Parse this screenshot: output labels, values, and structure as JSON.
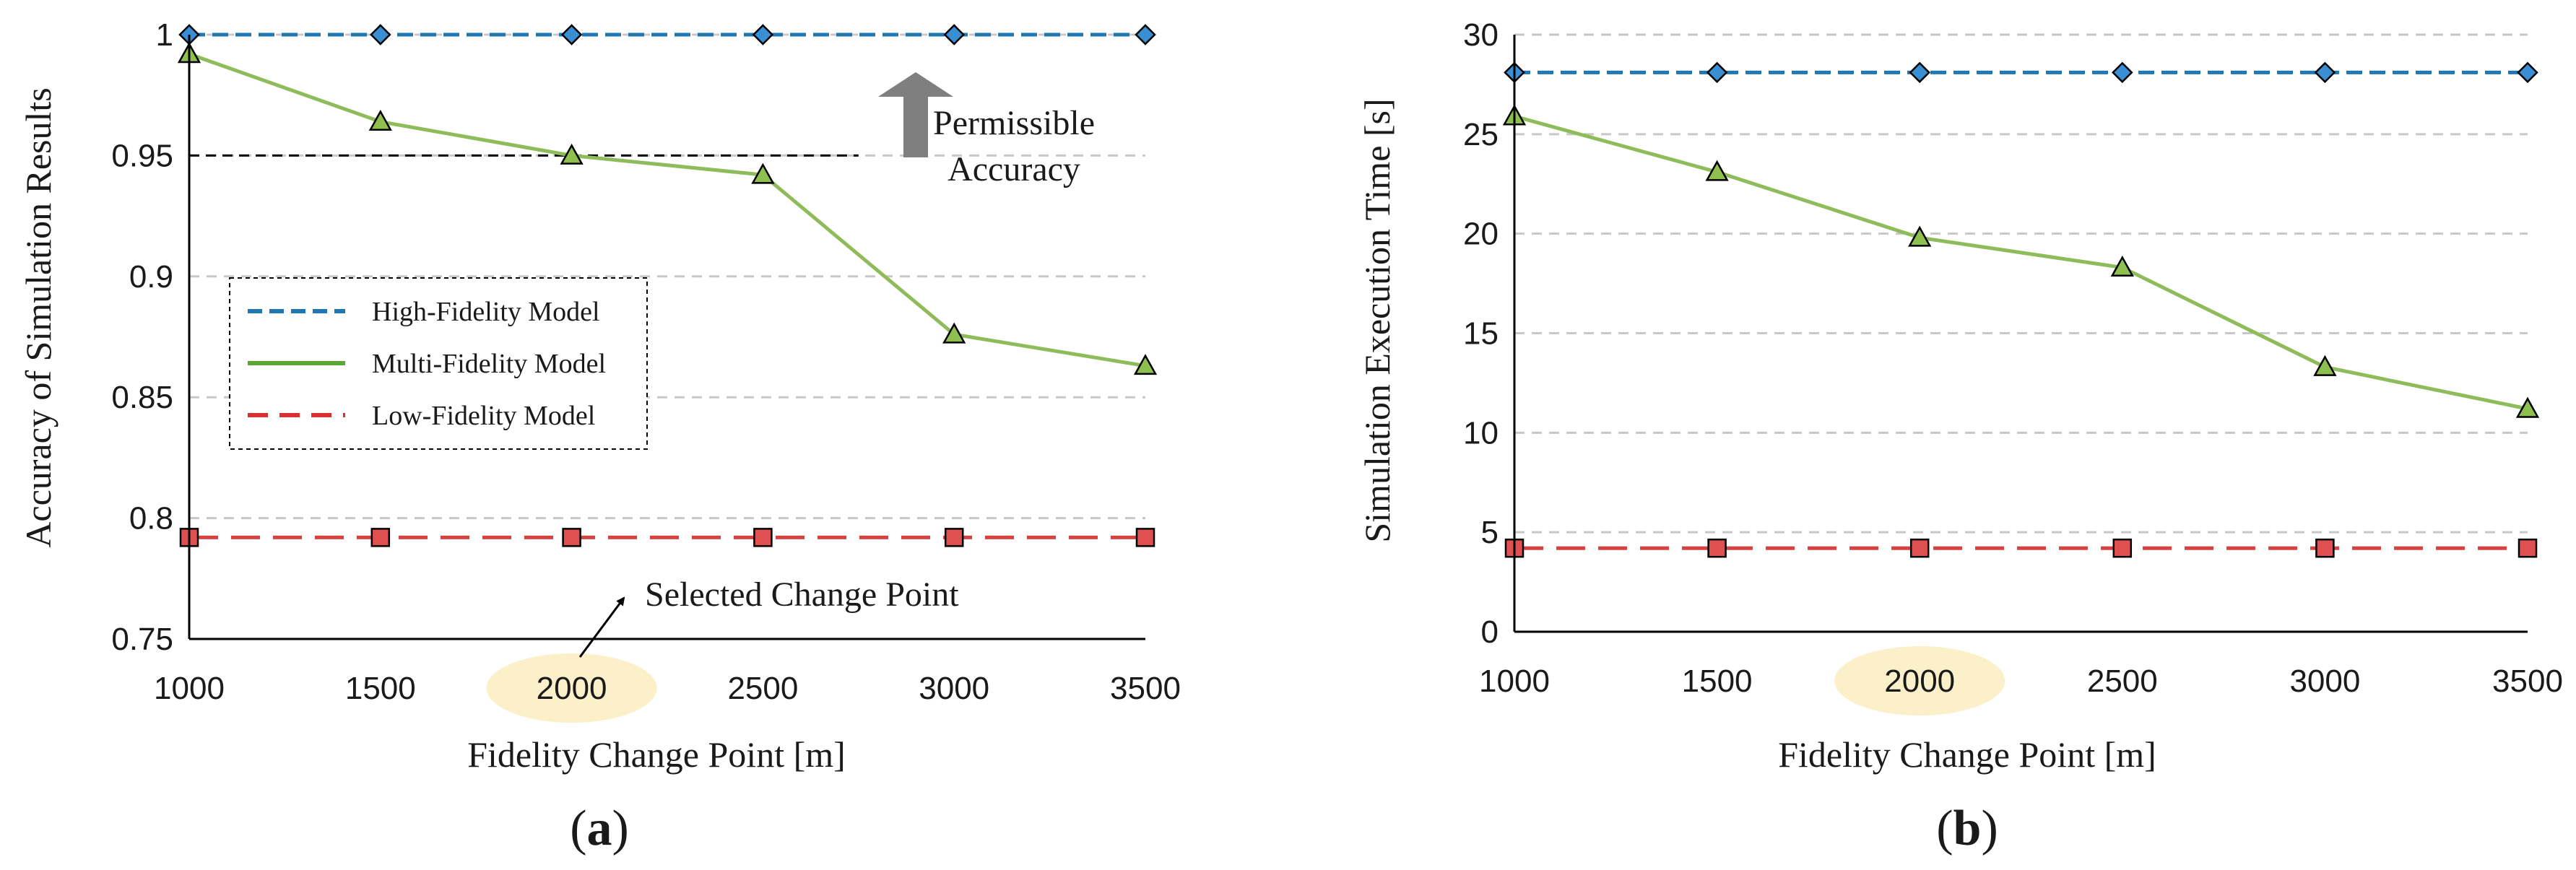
{
  "chart_data": [
    {
      "type": "line",
      "panel_label": "(a)",
      "panel_letter": "a",
      "xlabel": "Fidelity Change Point [m]",
      "ylabel": "Accuracy of Simulation Results",
      "x": [
        1000,
        1500,
        2000,
        2500,
        3000,
        3500
      ],
      "x_tick_labels": [
        "1000",
        "1500",
        "2000",
        "2500",
        "3000",
        "3500"
      ],
      "ylim": [
        0.75,
        1.0
      ],
      "y_ticks": [
        0.75,
        0.8,
        0.85,
        0.9,
        0.95,
        1.0
      ],
      "y_tick_labels": [
        "0.75",
        "0.8",
        "0.85",
        "0.9",
        "0.95",
        "1"
      ],
      "grid": true,
      "highlighted_x": 2000,
      "series": [
        {
          "name": "High-Fidelity Model",
          "key": "high",
          "color": "#1f77b4",
          "marker": "diamond",
          "marker_color": "#3a8fd4",
          "dash": "dashed",
          "values": [
            1.0,
            1.0,
            1.0,
            1.0,
            1.0,
            1.0
          ]
        },
        {
          "name": "Multi-Fidelity Model",
          "key": "multi",
          "color": "#8fbc5a",
          "marker": "triangle",
          "marker_color": "#8fbf4f",
          "dash": "solid",
          "values": [
            0.992,
            0.964,
            0.95,
            0.942,
            0.876,
            0.863
          ]
        },
        {
          "name": "Low-Fidelity Model",
          "key": "low",
          "color": "#d94040",
          "marker": "square",
          "marker_color": "#e05050",
          "dash": "longdash",
          "values": [
            0.792,
            0.792,
            0.792,
            0.792,
            0.792,
            0.792
          ]
        }
      ],
      "reference_line": {
        "value": 0.95,
        "x_start": 1000,
        "x_end": 2750,
        "color": "#000000"
      },
      "annotations": {
        "permissible_line1": "Permissible",
        "permissible_line2": "Accuracy",
        "selected_change_point": "Selected Change Point"
      },
      "legend": {
        "position": "center-left",
        "entries": [
          "High-Fidelity Model",
          "Multi-Fidelity Model",
          "Low-Fidelity Model"
        ]
      }
    },
    {
      "type": "line",
      "panel_label": "(b)",
      "panel_letter": "b",
      "xlabel": "Fidelity Change Point [m]",
      "ylabel": "Simulation Execution Time [s]",
      "x": [
        1000,
        1500,
        2000,
        2500,
        3000,
        3500
      ],
      "x_tick_labels": [
        "1000",
        "1500",
        "2000",
        "2500",
        "3000",
        "3500"
      ],
      "ylim": [
        0,
        30
      ],
      "y_ticks": [
        0,
        5,
        10,
        15,
        20,
        25,
        30
      ],
      "y_tick_labels": [
        "0",
        "5",
        "10",
        "15",
        "20",
        "25",
        "30"
      ],
      "grid": true,
      "highlighted_x": 2000,
      "series": [
        {
          "name": "High-Fidelity Model",
          "key": "high",
          "color": "#1f77b4",
          "marker": "diamond",
          "marker_color": "#3a8fd4",
          "dash": "dashed",
          "values": [
            28.1,
            28.1,
            28.1,
            28.1,
            28.1,
            28.1
          ]
        },
        {
          "name": "Multi-Fidelity Model",
          "key": "multi",
          "color": "#8fbc5a",
          "marker": "triangle",
          "marker_color": "#8fbf4f",
          "dash": "solid",
          "values": [
            25.9,
            23.1,
            19.8,
            18.3,
            13.3,
            11.2
          ]
        },
        {
          "name": "Low-Fidelity Model",
          "key": "low",
          "color": "#d94040",
          "marker": "square",
          "marker_color": "#e05050",
          "dash": "longdash",
          "values": [
            4.2,
            4.2,
            4.2,
            4.2,
            4.2,
            4.2
          ]
        }
      ]
    }
  ],
  "colors": {
    "highlight": "#fbf0c9",
    "grid": "#c8c8c8",
    "axis": "#000000",
    "arrow_gray": "#7f7f7f"
  }
}
